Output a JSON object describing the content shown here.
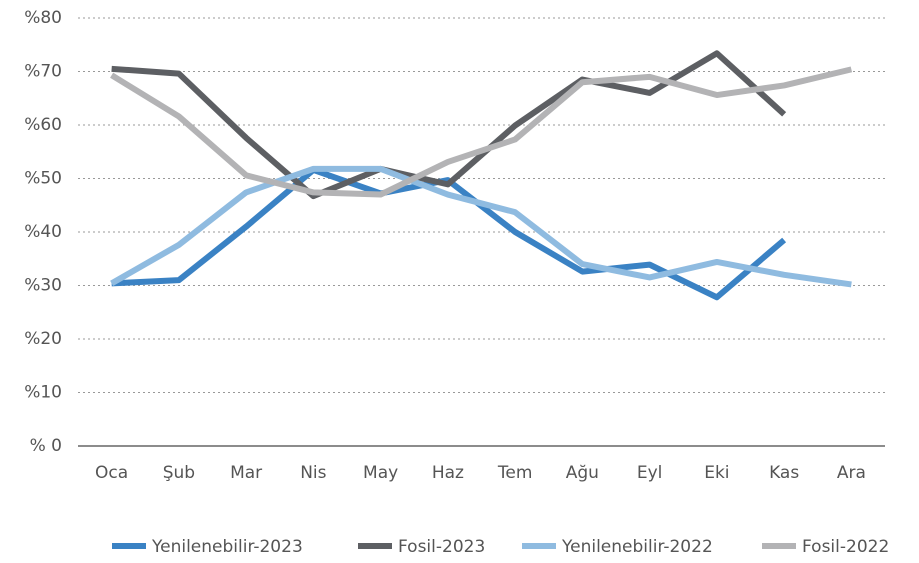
{
  "chart_data": {
    "type": "line",
    "categories": [
      "Oca",
      "Şub",
      "Mar",
      "Nis",
      "May",
      "Haz",
      "Tem",
      "Ağu",
      "Eyl",
      "Eki",
      "Kas",
      "Ara"
    ],
    "series": [
      {
        "name": "Yenilenebilir-2023",
        "color": "#3a82c4",
        "values": [
          30.4,
          31,
          41,
          51.6,
          47.2,
          49.7,
          40,
          32.6,
          33.9,
          27.8,
          38.5,
          null
        ]
      },
      {
        "name": "Fosil-2023",
        "color": "#5d5f63",
        "values": [
          70.5,
          69.6,
          57.6,
          46.7,
          51.8,
          48.9,
          59.9,
          68.5,
          66,
          73.4,
          62,
          null
        ]
      },
      {
        "name": "Yenilenebilir-2022",
        "color": "#8fbbe0",
        "values": [
          30.4,
          37.6,
          47.4,
          51.8,
          51.8,
          47,
          43.7,
          34,
          31.5,
          34.4,
          32,
          30.2
        ]
      },
      {
        "name": "Fosil-2022",
        "color": "#b3b3b5",
        "values": [
          69.3,
          61.6,
          50.6,
          47.4,
          47,
          53.1,
          57.3,
          68,
          69,
          65.6,
          67.4,
          70.4
        ]
      }
    ],
    "ylim": [
      0,
      80
    ],
    "yticks": [
      {
        "value": 0,
        "label": "% 0"
      },
      {
        "value": 10,
        "label": "%10"
      },
      {
        "value": 20,
        "label": "%20"
      },
      {
        "value": 30,
        "label": "%30"
      },
      {
        "value": 40,
        "label": "%40"
      },
      {
        "value": 50,
        "label": "%50"
      },
      {
        "value": 60,
        "label": "%60"
      },
      {
        "value": 70,
        "label": "%70"
      },
      {
        "value": 80,
        "label": "%80"
      }
    ],
    "grid": true,
    "legend": "bottom"
  }
}
